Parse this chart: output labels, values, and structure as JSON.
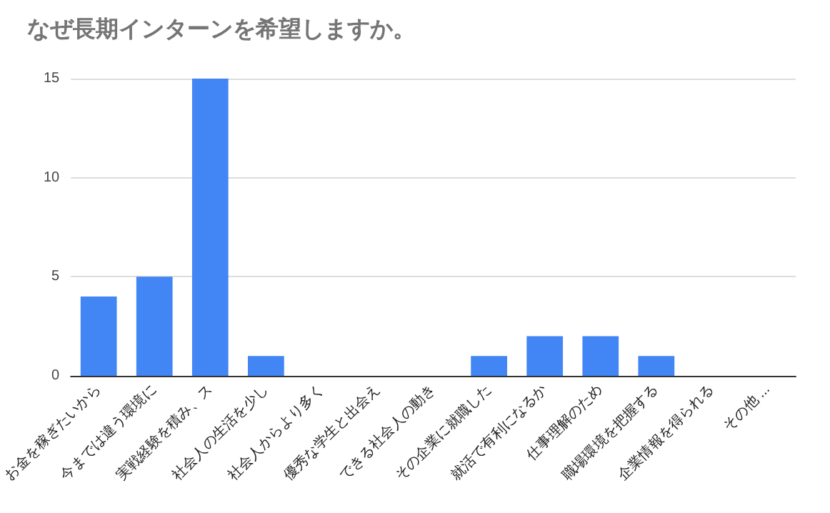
{
  "chart_data": {
    "type": "bar",
    "title": "なぜ長期インターンを希望しますか。",
    "categories": [
      "お金を稼ぎたいから",
      "今までは違う環境に",
      "実戦経験を積み、ス",
      "社会人の生活を少し",
      "社会人からより多く",
      "優秀な学生と出会え",
      "できる社会人の動き",
      "その企業に就職した",
      "就活で有利になるか",
      "仕事理解のため",
      "職場環境を把握する",
      "企業情報を得られる",
      "その他 ..."
    ],
    "values": [
      4,
      5,
      15,
      1,
      0,
      0,
      0,
      1,
      2,
      2,
      1,
      0,
      0
    ],
    "color": "#4285f4",
    "ylim": [
      0,
      15
    ],
    "yticks": [
      0,
      5,
      10,
      15
    ],
    "grid": "y"
  }
}
